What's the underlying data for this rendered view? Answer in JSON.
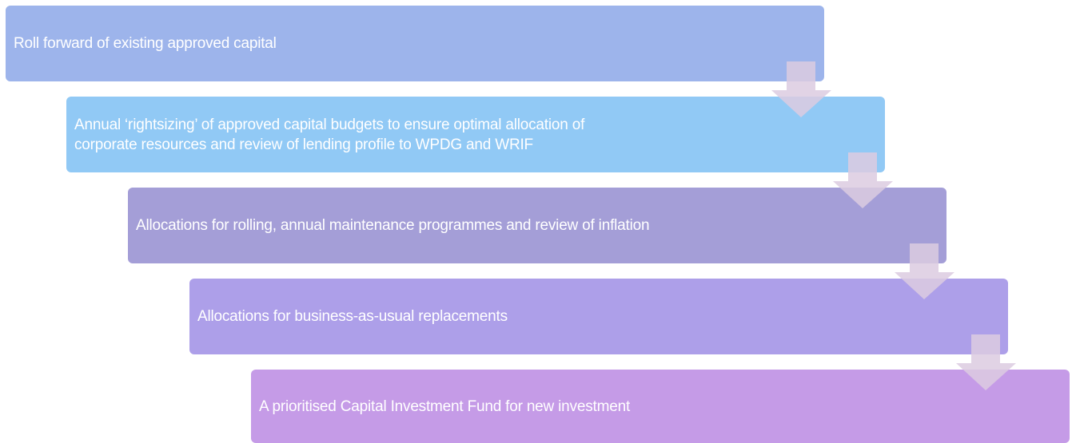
{
  "steps": [
    {
      "lines": [
        "Roll forward of existing approved capital"
      ]
    },
    {
      "lines": [
        "Annual ‘rightsizing’ of approved capital budgets to ensure optimal allocation of",
        "corporate resources and review of lending profile to WPDG and WRIF"
      ]
    },
    {
      "lines": [
        "Allocations for rolling, annual maintenance programmes and review of inflation"
      ]
    },
    {
      "lines": [
        "Allocations for business-as-usual replacements"
      ]
    },
    {
      "lines": [
        "A prioritised Capital Investment Fund for new investment"
      ]
    }
  ]
}
